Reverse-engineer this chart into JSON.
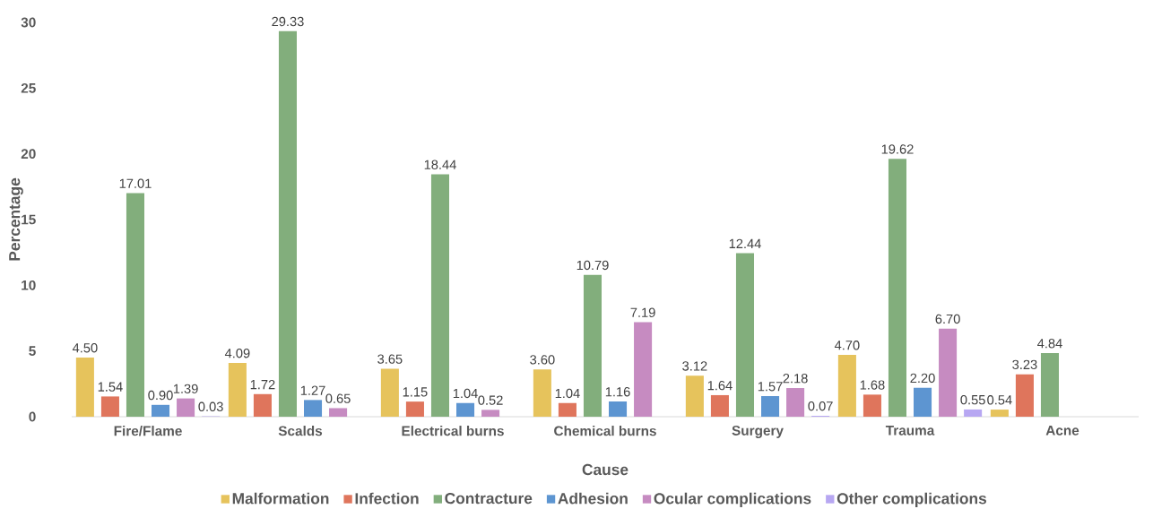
{
  "chart_data": {
    "type": "bar",
    "xlabel": "Cause",
    "ylabel": "Percentage",
    "categories": [
      "Fire/Flame",
      "Scalds",
      "Electrical burns",
      "Chemical burns",
      "Surgery",
      "Trauma",
      "Acne"
    ],
    "ylim": [
      0,
      30
    ],
    "yticks": [
      0,
      5,
      10,
      15,
      20,
      25,
      30
    ],
    "legend": "bottom",
    "series": [
      {
        "name": "Malformation",
        "color": "#e6c35c",
        "values": [
          4.5,
          4.09,
          3.65,
          3.6,
          3.12,
          4.7,
          0.54
        ],
        "value_labels": [
          "4.50",
          "4.09",
          "3.65",
          "3.60",
          "3.12",
          "4.70",
          "0.54"
        ]
      },
      {
        "name": "Infection",
        "color": "#df755c",
        "values": [
          1.54,
          1.72,
          1.15,
          1.04,
          1.64,
          1.68,
          3.23
        ],
        "value_labels": [
          "1.54",
          "1.72",
          "1.15",
          "1.04",
          "1.64",
          "1.68",
          "3.23"
        ]
      },
      {
        "name": "Contracture",
        "color": "#82ae7c",
        "values": [
          17.01,
          29.33,
          18.44,
          10.79,
          12.44,
          19.62,
          4.84
        ],
        "value_labels": [
          "17.01",
          "29.33",
          "18.44",
          "10.79",
          "12.44",
          "19.62",
          "4.84"
        ]
      },
      {
        "name": "Adhesion",
        "color": "#5d95d1",
        "values": [
          0.9,
          1.27,
          1.04,
          1.16,
          1.57,
          2.2,
          null
        ],
        "value_labels": [
          "0.90",
          "1.27",
          "1.04",
          "1.16",
          "1.57",
          "2.20",
          null
        ]
      },
      {
        "name": "Ocular complications",
        "color": "#c68bc1",
        "values": [
          1.39,
          0.65,
          0.52,
          7.19,
          2.18,
          6.7,
          null
        ],
        "value_labels": [
          "1.39",
          "0.65",
          "0.52",
          "7.19",
          "2.18",
          "6.70",
          null
        ]
      },
      {
        "name": "Other complications",
        "color": "#b7a7f2",
        "values": [
          0.03,
          null,
          null,
          null,
          0.07,
          0.55,
          null
        ],
        "value_labels": [
          "0.03",
          null,
          null,
          null,
          "0.07",
          "0.55",
          null
        ]
      }
    ]
  }
}
